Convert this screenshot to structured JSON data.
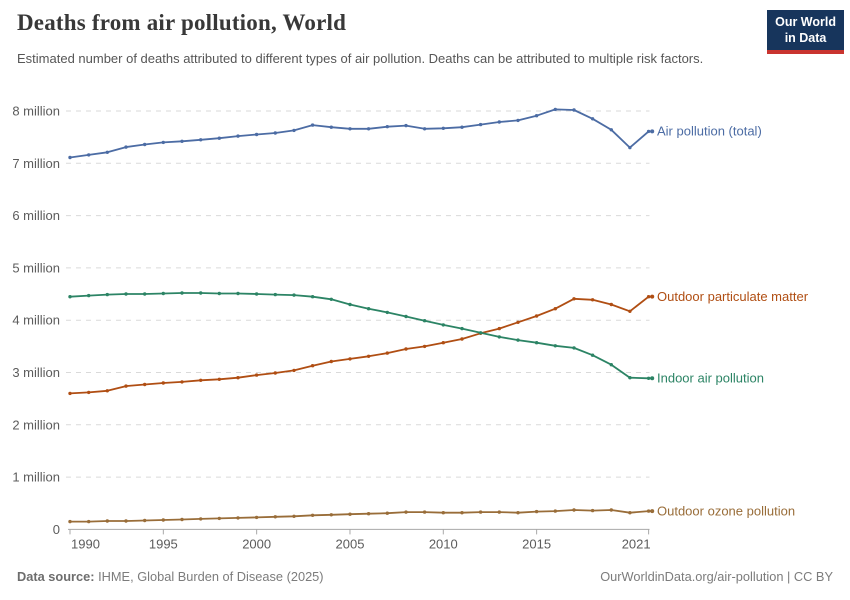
{
  "header": {
    "title": "Deaths from air pollution, World",
    "subtitle": "Estimated number of deaths attributed to different types of air pollution. Deaths can be attributed to multiple risk factors.",
    "logo": {
      "line1": "Our World",
      "line2": "in Data",
      "bg_color": "#17355C",
      "stripe_color": "#C9342F"
    }
  },
  "footer": {
    "source_label": "Data source:",
    "source_text": " IHME, Global Burden of Disease (2025)",
    "credit": "OurWorldinData.org/air-pollution | CC BY"
  },
  "chart_data": {
    "type": "line",
    "title": "Deaths from air pollution, World",
    "xlabel": "",
    "ylabel": "",
    "grid": "horizontal-dashed",
    "legend_position": "right-end-labels",
    "ylim": [
      0,
      8.3
    ],
    "x": [
      1990,
      1991,
      1992,
      1993,
      1994,
      1995,
      1996,
      1997,
      1998,
      1999,
      2000,
      2001,
      2002,
      2003,
      2004,
      2005,
      2006,
      2007,
      2008,
      2009,
      2010,
      2011,
      2012,
      2013,
      2014,
      2015,
      2016,
      2017,
      2018,
      2019,
      2020,
      2021
    ],
    "x_ticks": [
      1990,
      1995,
      2000,
      2005,
      2010,
      2015,
      2021
    ],
    "y_ticks": [
      {
        "value": 8,
        "label": "8 million"
      },
      {
        "value": 7,
        "label": "7 million"
      },
      {
        "value": 6,
        "label": "6 million"
      },
      {
        "value": 5,
        "label": "5 million"
      },
      {
        "value": 4,
        "label": "4 million"
      },
      {
        "value": 3,
        "label": "3 million"
      },
      {
        "value": 2,
        "label": "2 million"
      },
      {
        "value": 1,
        "label": "1 million"
      },
      {
        "value": 0,
        "label": "0"
      }
    ],
    "unit": "million deaths",
    "series": [
      {
        "name": "Air pollution (total)",
        "slug": "air-pollution-total",
        "color": "#4C6CA4",
        "values": [
          7.11,
          7.16,
          7.21,
          7.31,
          7.36,
          7.4,
          7.42,
          7.45,
          7.48,
          7.52,
          7.55,
          7.58,
          7.63,
          7.73,
          7.69,
          7.66,
          7.66,
          7.7,
          7.72,
          7.66,
          7.67,
          7.69,
          7.74,
          7.79,
          7.82,
          7.91,
          8.03,
          8.02,
          7.85,
          7.64,
          7.3,
          7.61
        ]
      },
      {
        "name": "Outdoor particulate matter",
        "slug": "outdoor-particulate-matter",
        "color": "#B04E13",
        "values": [
          2.6,
          2.62,
          2.65,
          2.74,
          2.77,
          2.8,
          2.82,
          2.85,
          2.87,
          2.9,
          2.95,
          2.99,
          3.04,
          3.13,
          3.21,
          3.26,
          3.31,
          3.37,
          3.45,
          3.5,
          3.57,
          3.64,
          3.75,
          3.84,
          3.96,
          4.08,
          4.22,
          4.41,
          4.39,
          4.3,
          4.17,
          4.45
        ]
      },
      {
        "name": "Indoor air pollution",
        "slug": "indoor-air-pollution",
        "color": "#2C8465",
        "values": [
          4.45,
          4.47,
          4.49,
          4.5,
          4.5,
          4.51,
          4.52,
          4.52,
          4.51,
          4.51,
          4.5,
          4.49,
          4.48,
          4.45,
          4.4,
          4.3,
          4.22,
          4.15,
          4.07,
          3.99,
          3.91,
          3.84,
          3.76,
          3.68,
          3.62,
          3.57,
          3.51,
          3.47,
          3.33,
          3.15,
          2.9,
          2.89
        ]
      },
      {
        "name": "Outdoor ozone pollution",
        "slug": "outdoor-ozone-pollution",
        "color": "#996D39",
        "values": [
          0.15,
          0.15,
          0.16,
          0.16,
          0.17,
          0.18,
          0.19,
          0.2,
          0.21,
          0.22,
          0.23,
          0.24,
          0.25,
          0.27,
          0.28,
          0.29,
          0.3,
          0.31,
          0.33,
          0.33,
          0.32,
          0.32,
          0.33,
          0.33,
          0.32,
          0.34,
          0.35,
          0.37,
          0.36,
          0.37,
          0.32,
          0.35
        ]
      }
    ]
  }
}
